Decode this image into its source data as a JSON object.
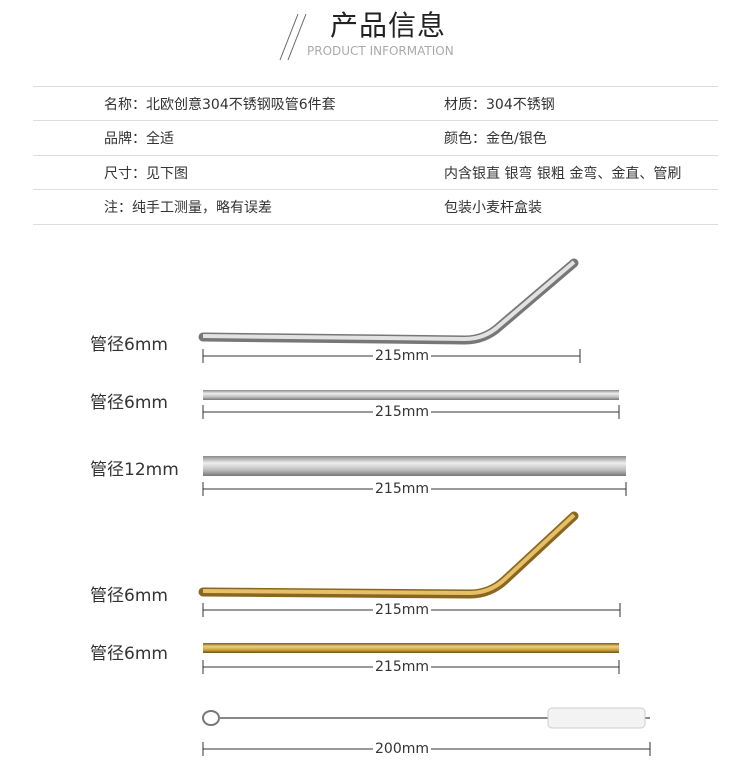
{
  "header": {
    "title": "产品信息",
    "subtitle": "PRODUCT INFORMATION"
  },
  "info_table": {
    "rows": [
      {
        "left": "名称：北欧创意304不锈钢吸管6件套",
        "right": "材质：304不锈钢"
      },
      {
        "left": "品牌：全适",
        "right": "颜色：金色/银色"
      },
      {
        "left": "尺寸：见下图",
        "right": "内含银直 银弯 银粗 金弯、金直、管刷"
      },
      {
        "left": "注：纯手工测量，略有误差",
        "right": "包装小麦杆盒装"
      }
    ]
  },
  "items": [
    {
      "label": "管径6mm",
      "length": "215mm",
      "kind": "bent",
      "color": "silver"
    },
    {
      "label": "管径6mm",
      "length": "215mm",
      "kind": "straight",
      "color": "silver"
    },
    {
      "label": "管径12mm",
      "length": "215mm",
      "kind": "straight-thick",
      "color": "silver"
    },
    {
      "label": "管径6mm",
      "length": "215mm",
      "kind": "bent",
      "color": "gold"
    },
    {
      "label": "管径6mm",
      "length": "215mm",
      "kind": "straight",
      "color": "gold"
    },
    {
      "label": "",
      "length": "200mm",
      "kind": "brush",
      "color": "silver"
    }
  ],
  "colors": {
    "silver": "#c8c8c8",
    "gold": "#c9a043",
    "divider": "#dddddd"
  }
}
